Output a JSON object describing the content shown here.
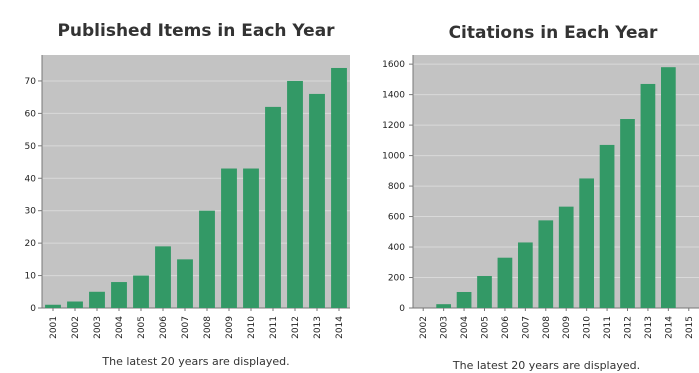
{
  "chart_data": [
    {
      "type": "bar",
      "title": "Published Items in Each Year",
      "categories": [
        "2001",
        "2002",
        "2003",
        "2004",
        "2005",
        "2006",
        "2007",
        "2008",
        "2009",
        "2010",
        "2011",
        "2012",
        "2013",
        "2014"
      ],
      "values": [
        1,
        2,
        5,
        8,
        10,
        19,
        15,
        30,
        43,
        43,
        62,
        70,
        66,
        74
      ],
      "ylim": [
        0,
        78
      ],
      "yticks": [
        0,
        10,
        20,
        30,
        40,
        50,
        60,
        70
      ],
      "footer": "The latest 20 years are displayed.",
      "bar_color": "#339966",
      "plot_bg": "#c3c3c3",
      "grid": true
    },
    {
      "type": "bar",
      "title": "Citations in Each Year",
      "categories": [
        "2002",
        "2003",
        "2004",
        "2005",
        "2006",
        "2007",
        "2008",
        "2009",
        "2010",
        "2011",
        "2012",
        "2013",
        "2014",
        "2015"
      ],
      "values": [
        0,
        25,
        105,
        210,
        330,
        430,
        575,
        665,
        850,
        1070,
        1240,
        1470,
        1580,
        0
      ],
      "ylim": [
        0,
        1660
      ],
      "yticks": [
        0,
        200,
        400,
        600,
        800,
        1000,
        1200,
        1400,
        1600
      ],
      "footer": "The latest 20 years are displayed.",
      "bar_color": "#339966",
      "plot_bg": "#c3c3c3",
      "grid": true
    }
  ]
}
